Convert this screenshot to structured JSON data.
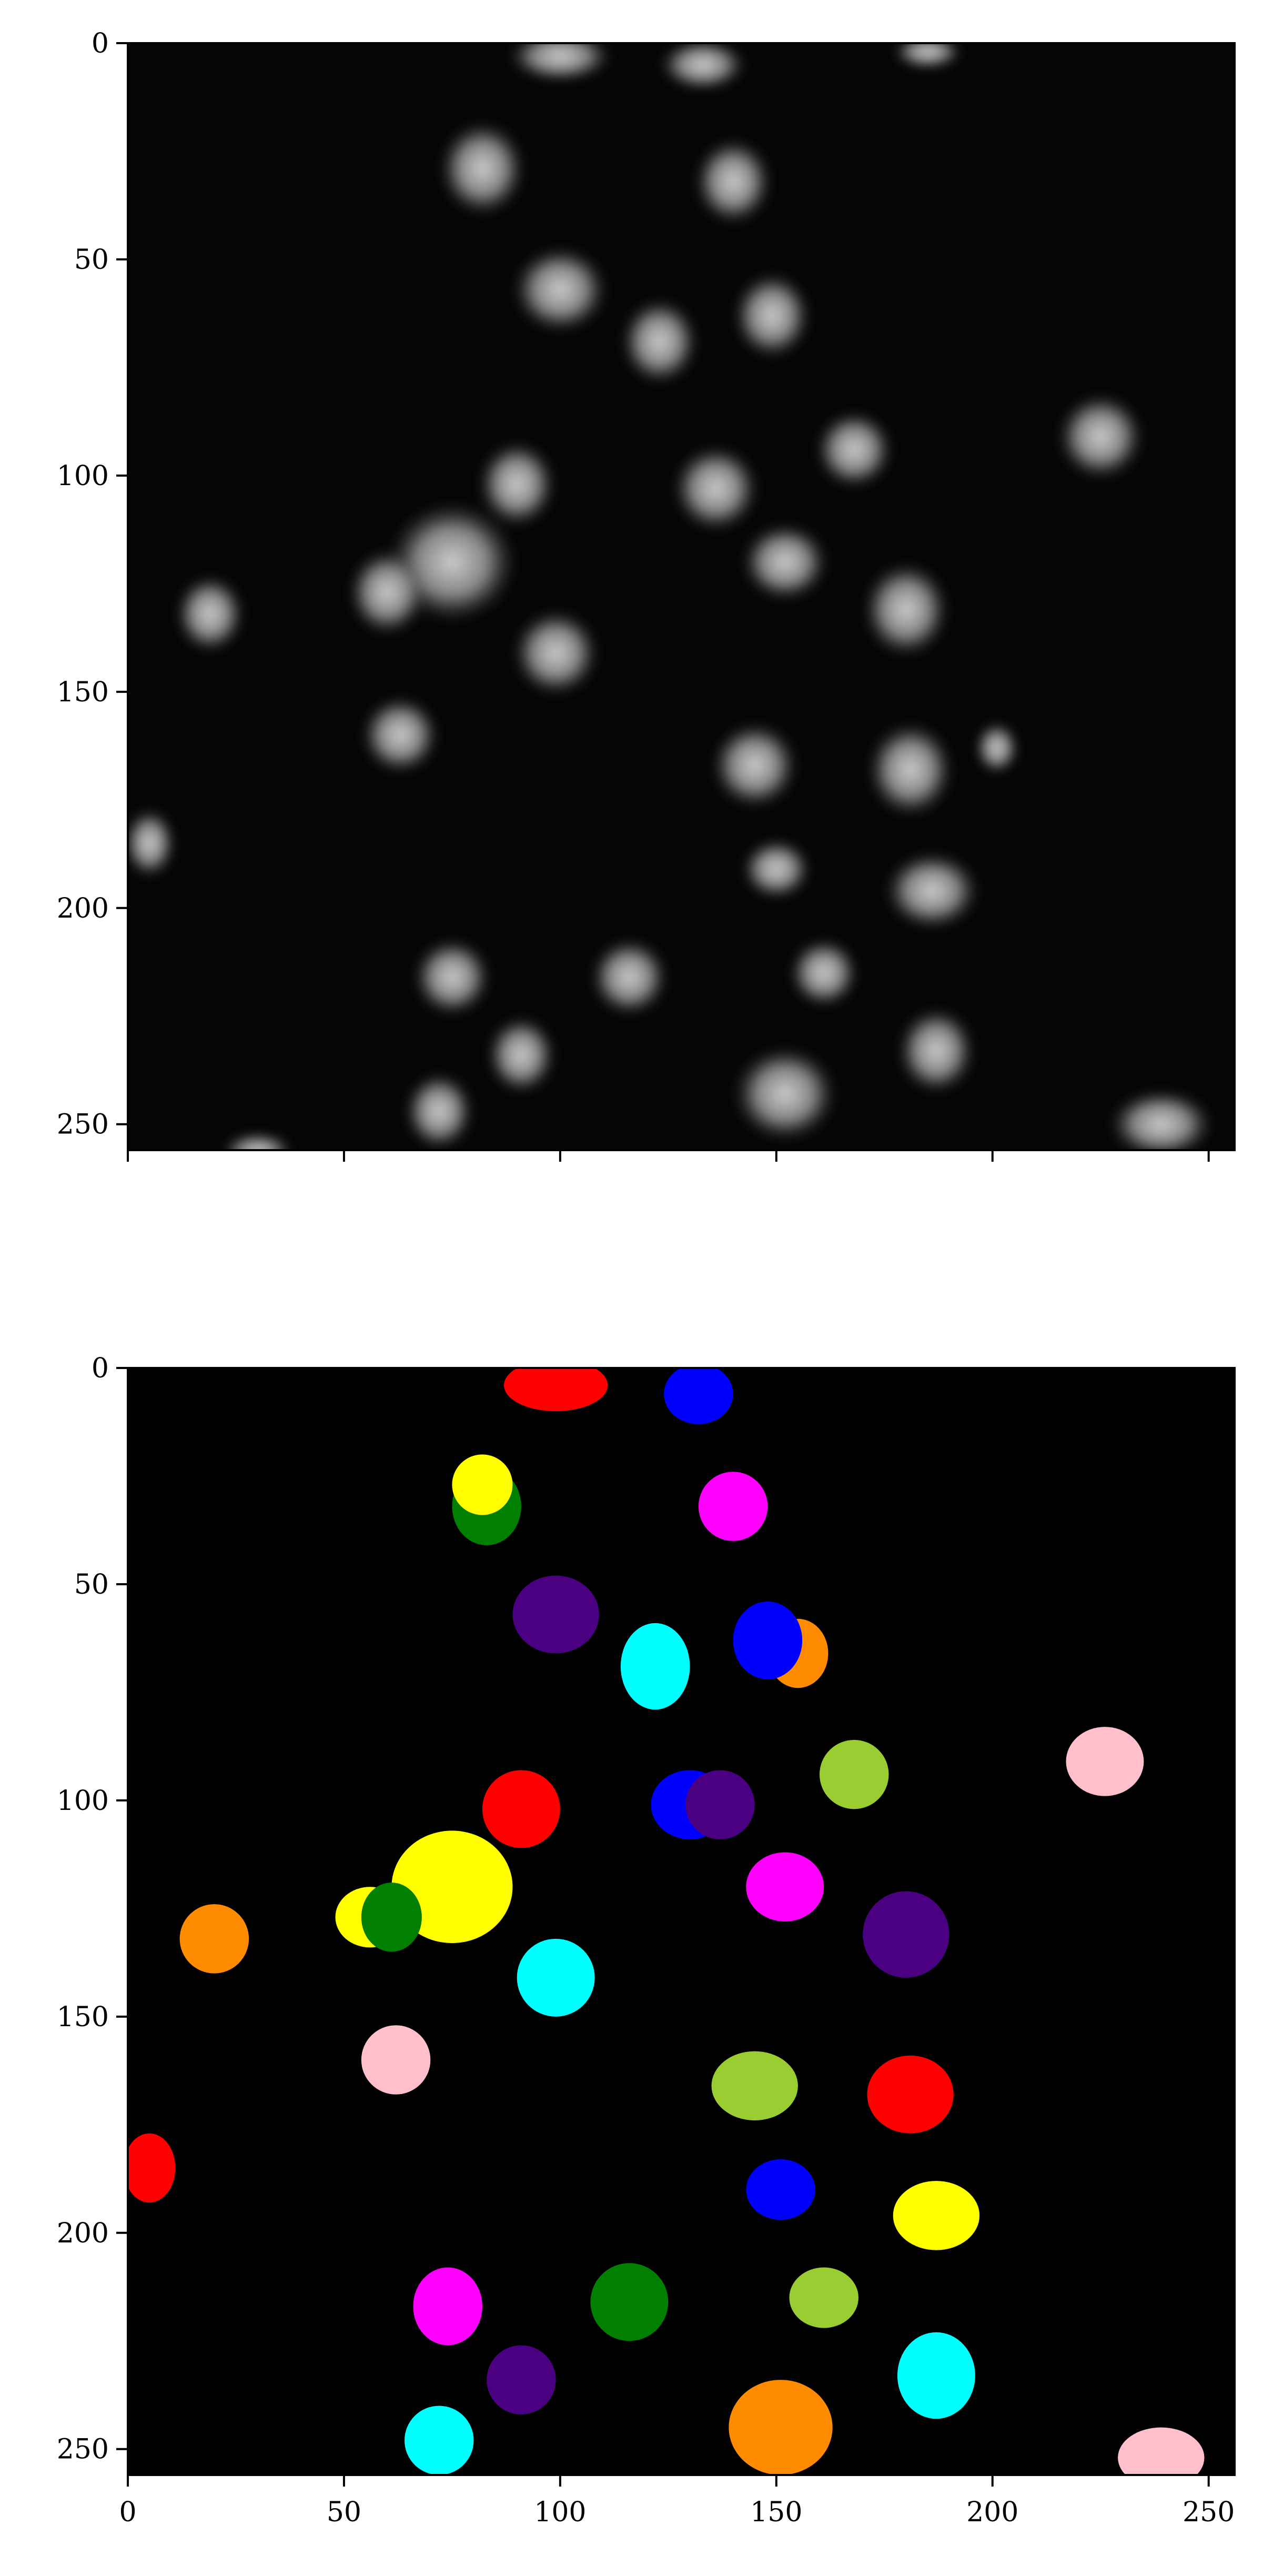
{
  "figure": {
    "background": "#ffffff",
    "panels": [
      {
        "id": "top",
        "kind": "grayscale-micrograph",
        "description_hidden": true,
        "x_range": [
          0,
          256
        ],
        "y_range": [
          0,
          256
        ],
        "y_ticks": [
          0,
          50,
          100,
          150,
          200,
          250
        ],
        "x_ticks": [
          0,
          50,
          100,
          150,
          200,
          250
        ],
        "show_x_tick_labels": false,
        "show_y_tick_labels": true,
        "nuclei": [
          {
            "x": 100,
            "y": 3,
            "rx": 12,
            "ry": 6
          },
          {
            "x": 133,
            "y": 5,
            "rx": 10,
            "ry": 6
          },
          {
            "x": 185,
            "y": 2,
            "rx": 8,
            "ry": 4
          },
          {
            "x": 82,
            "y": 29,
            "rx": 10,
            "ry": 11
          },
          {
            "x": 140,
            "y": 32,
            "rx": 9,
            "ry": 10
          },
          {
            "x": 100,
            "y": 57,
            "rx": 11,
            "ry": 10
          },
          {
            "x": 123,
            "y": 69,
            "rx": 9,
            "ry": 10
          },
          {
            "x": 149,
            "y": 63,
            "rx": 9,
            "ry": 10
          },
          {
            "x": 225,
            "y": 91,
            "rx": 10,
            "ry": 10
          },
          {
            "x": 168,
            "y": 94,
            "rx": 9,
            "ry": 9
          },
          {
            "x": 90,
            "y": 102,
            "rx": 9,
            "ry": 10
          },
          {
            "x": 136,
            "y": 103,
            "rx": 10,
            "ry": 10
          },
          {
            "x": 75,
            "y": 120,
            "rx": 15,
            "ry": 14
          },
          {
            "x": 60,
            "y": 127,
            "rx": 9,
            "ry": 10
          },
          {
            "x": 152,
            "y": 120,
            "rx": 10,
            "ry": 9
          },
          {
            "x": 19,
            "y": 132,
            "rx": 8,
            "ry": 9
          },
          {
            "x": 180,
            "y": 131,
            "rx": 10,
            "ry": 11
          },
          {
            "x": 99,
            "y": 141,
            "rx": 10,
            "ry": 10
          },
          {
            "x": 63,
            "y": 160,
            "rx": 9,
            "ry": 9
          },
          {
            "x": 145,
            "y": 167,
            "rx": 10,
            "ry": 10
          },
          {
            "x": 181,
            "y": 168,
            "rx": 10,
            "ry": 11
          },
          {
            "x": 201,
            "y": 163,
            "rx": 5,
            "ry": 6
          },
          {
            "x": 5,
            "y": 185,
            "rx": 6,
            "ry": 8
          },
          {
            "x": 150,
            "y": 191,
            "rx": 8,
            "ry": 7
          },
          {
            "x": 186,
            "y": 196,
            "rx": 11,
            "ry": 9
          },
          {
            "x": 75,
            "y": 216,
            "rx": 9,
            "ry": 9
          },
          {
            "x": 116,
            "y": 216,
            "rx": 9,
            "ry": 9
          },
          {
            "x": 161,
            "y": 215,
            "rx": 8,
            "ry": 8
          },
          {
            "x": 91,
            "y": 234,
            "rx": 8,
            "ry": 9
          },
          {
            "x": 187,
            "y": 233,
            "rx": 9,
            "ry": 10
          },
          {
            "x": 72,
            "y": 247,
            "rx": 8,
            "ry": 9
          },
          {
            "x": 152,
            "y": 243,
            "rx": 12,
            "ry": 11
          },
          {
            "x": 239,
            "y": 250,
            "rx": 12,
            "ry": 8
          },
          {
            "x": 30,
            "y": 256,
            "rx": 8,
            "ry": 4
          }
        ]
      },
      {
        "id": "bottom",
        "kind": "segmentation-labels",
        "x_range": [
          0,
          256
        ],
        "y_range": [
          0,
          256
        ],
        "y_ticks": [
          0,
          50,
          100,
          150,
          200,
          250
        ],
        "x_ticks": [
          0,
          50,
          100,
          150,
          200,
          250
        ],
        "show_x_tick_labels": true,
        "show_y_tick_labels": true,
        "labels": [
          {
            "x": 99,
            "y": 4,
            "rx": 12,
            "ry": 6,
            "color": "#ff0000"
          },
          {
            "x": 132,
            "y": 6,
            "rx": 8,
            "ry": 7,
            "color": "#0000ff"
          },
          {
            "x": 83,
            "y": 32,
            "rx": 8,
            "ry": 9,
            "color": "#007f00"
          },
          {
            "x": 82,
            "y": 27,
            "rx": 7,
            "ry": 7,
            "color": "#ffff00"
          },
          {
            "x": 140,
            "y": 32,
            "rx": 8,
            "ry": 8,
            "color": "#ff00ff"
          },
          {
            "x": 99,
            "y": 57,
            "rx": 10,
            "ry": 9,
            "color": "#4b0082"
          },
          {
            "x": 122,
            "y": 69,
            "rx": 8,
            "ry": 10,
            "color": "#00ffff"
          },
          {
            "x": 155,
            "y": 66,
            "rx": 7,
            "ry": 8,
            "color": "#ff8c00"
          },
          {
            "x": 148,
            "y": 63,
            "rx": 8,
            "ry": 9,
            "color": "#0000ff"
          },
          {
            "x": 226,
            "y": 91,
            "rx": 9,
            "ry": 8,
            "color": "#ffc0cb"
          },
          {
            "x": 168,
            "y": 94,
            "rx": 8,
            "ry": 8,
            "color": "#9acd32"
          },
          {
            "x": 91,
            "y": 102,
            "rx": 9,
            "ry": 9,
            "color": "#ff0000"
          },
          {
            "x": 130,
            "y": 101,
            "rx": 9,
            "ry": 8,
            "color": "#0000ff"
          },
          {
            "x": 137,
            "y": 101,
            "rx": 8,
            "ry": 8,
            "color": "#4b0082"
          },
          {
            "x": 75,
            "y": 120,
            "rx": 14,
            "ry": 13,
            "color": "#ffff00"
          },
          {
            "x": 56,
            "y": 127,
            "rx": 8,
            "ry": 7,
            "color": "#ffff00"
          },
          {
            "x": 61,
            "y": 127,
            "rx": 7,
            "ry": 8,
            "color": "#007f00"
          },
          {
            "x": 152,
            "y": 120,
            "rx": 9,
            "ry": 8,
            "color": "#ff00ff"
          },
          {
            "x": 20,
            "y": 132,
            "rx": 8,
            "ry": 8,
            "color": "#ff8c00"
          },
          {
            "x": 180,
            "y": 131,
            "rx": 10,
            "ry": 10,
            "color": "#4b0082"
          },
          {
            "x": 99,
            "y": 141,
            "rx": 9,
            "ry": 9,
            "color": "#00ffff"
          },
          {
            "x": 62,
            "y": 160,
            "rx": 8,
            "ry": 8,
            "color": "#ffc0cb"
          },
          {
            "x": 145,
            "y": 166,
            "rx": 10,
            "ry": 8,
            "color": "#9acd32"
          },
          {
            "x": 181,
            "y": 168,
            "rx": 10,
            "ry": 9,
            "color": "#ff0000"
          },
          {
            "x": 5,
            "y": 185,
            "rx": 6,
            "ry": 8,
            "color": "#ff0000"
          },
          {
            "x": 151,
            "y": 190,
            "rx": 8,
            "ry": 7,
            "color": "#0000ff"
          },
          {
            "x": 187,
            "y": 196,
            "rx": 10,
            "ry": 8,
            "color": "#ffff00"
          },
          {
            "x": 74,
            "y": 217,
            "rx": 8,
            "ry": 9,
            "color": "#ff00ff"
          },
          {
            "x": 116,
            "y": 216,
            "rx": 9,
            "ry": 9,
            "color": "#007f00"
          },
          {
            "x": 161,
            "y": 215,
            "rx": 8,
            "ry": 7,
            "color": "#9acd32"
          },
          {
            "x": 91,
            "y": 234,
            "rx": 8,
            "ry": 8,
            "color": "#4b0082"
          },
          {
            "x": 187,
            "y": 233,
            "rx": 9,
            "ry": 10,
            "color": "#00ffff"
          },
          {
            "x": 72,
            "y": 248,
            "rx": 8,
            "ry": 8,
            "color": "#00ffff"
          },
          {
            "x": 151,
            "y": 245,
            "rx": 12,
            "ry": 11,
            "color": "#ff8c00"
          },
          {
            "x": 239,
            "y": 252,
            "rx": 10,
            "ry": 7,
            "color": "#ffc0cb"
          }
        ]
      }
    ]
  }
}
